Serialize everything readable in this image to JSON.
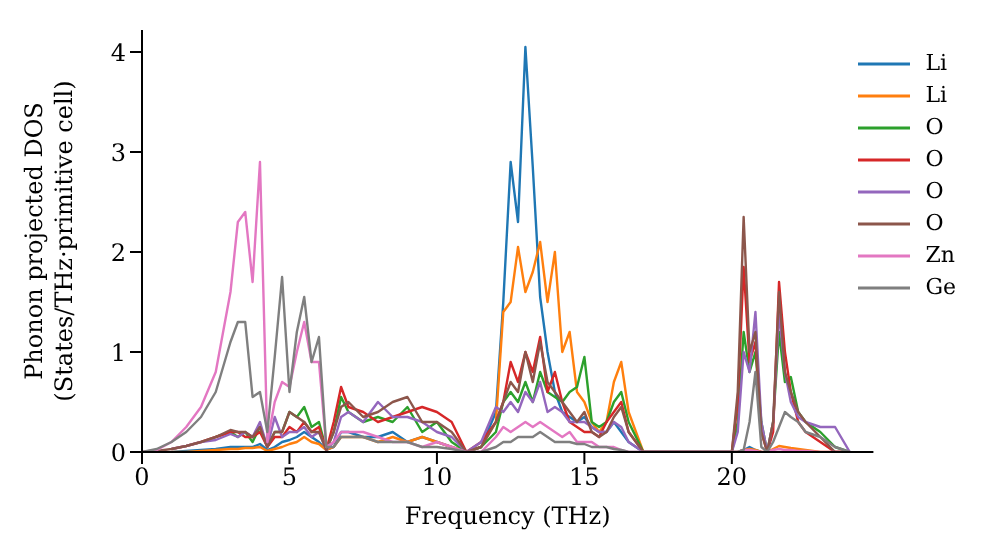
{
  "chart_data": {
    "type": "line",
    "xlabel": "Frequency (THz)",
    "ylabel": "Phonon projected DOS\n(States/THz·primitive cell)",
    "x": [
      0,
      0.5,
      1,
      1.5,
      2,
      2.5,
      3,
      3.25,
      3.5,
      3.75,
      4,
      4.25,
      4.5,
      4.75,
      5,
      5.25,
      5.5,
      5.75,
      6,
      6.25,
      6.5,
      6.75,
      7,
      7.5,
      8,
      8.5,
      9,
      9.5,
      10,
      10.5,
      11,
      11.5,
      12,
      12.25,
      12.5,
      12.75,
      13,
      13.25,
      13.5,
      13.75,
      14,
      14.25,
      14.5,
      14.75,
      15,
      15.25,
      15.5,
      15.75,
      16,
      16.25,
      16.5,
      17,
      17.5,
      18,
      19,
      19.8,
      20,
      20.2,
      20.4,
      20.6,
      20.8,
      21,
      21.2,
      21.4,
      21.6,
      21.8,
      22,
      22.25,
      22.5,
      23,
      23.5,
      24
    ],
    "xlim": [
      0,
      24.8
    ],
    "xticks": [
      0,
      5,
      10,
      15,
      20
    ],
    "ylim": [
      0,
      4.22
    ],
    "yticks": [
      0,
      1,
      2,
      3,
      4
    ],
    "grid": false,
    "legend": "top right",
    "marker": "none",
    "line_style": "solid",
    "series": [
      {
        "name": "Li",
        "color": "#1f77b4",
        "values": [
          null,
          null,
          0,
          0.01,
          0.02,
          0.03,
          0.05,
          0.05,
          0.05,
          0.05,
          0.08,
          0.02,
          0.05,
          0.1,
          0.12,
          0.15,
          0.2,
          0.15,
          0.1,
          0.02,
          0.05,
          0.2,
          0.2,
          0.15,
          0.15,
          0.2,
          0.1,
          0.15,
          0.1,
          0.05,
          0,
          0.05,
          0.4,
          1.5,
          2.9,
          2.3,
          4.05,
          2.85,
          1.55,
          1.0,
          0.6,
          0.4,
          0.35,
          0.3,
          0.35,
          0.25,
          0.2,
          0.2,
          0.3,
          0.2,
          0.1,
          0,
          0,
          0,
          0,
          0,
          0,
          0,
          0.02,
          0.05,
          0.02,
          0,
          null,
          null,
          null,
          null,
          null,
          null,
          null,
          null,
          null,
          null
        ]
      },
      {
        "name": "Li",
        "color": "#ff7f0e",
        "values": [
          null,
          null,
          0,
          0,
          0.01,
          0.02,
          0.03,
          0.03,
          0.04,
          0.04,
          0.05,
          0.01,
          0.03,
          0.05,
          0.08,
          0.1,
          0.15,
          0.1,
          0.08,
          0.02,
          0.05,
          0.15,
          0.15,
          0.15,
          0.1,
          0.15,
          0.1,
          0.15,
          0.1,
          0.05,
          0,
          0.05,
          0.3,
          1.4,
          1.5,
          2.05,
          1.6,
          1.8,
          2.1,
          1.5,
          2.0,
          1.0,
          1.2,
          0.6,
          0.5,
          0.3,
          0.2,
          0.3,
          0.7,
          0.9,
          0.4,
          0,
          0,
          0,
          0,
          0,
          0,
          0,
          0.02,
          0.03,
          0.02,
          0,
          0,
          0.03,
          0.06,
          0.05,
          0.04,
          0.03,
          0.02,
          0,
          0,
          0
        ]
      },
      {
        "name": "O",
        "color": "#2ca02c",
        "values": [
          null,
          null,
          null,
          null,
          null,
          0.15,
          0.2,
          0.15,
          0.2,
          0.1,
          0.25,
          0.05,
          0.2,
          0.2,
          0.4,
          0.35,
          0.45,
          0.25,
          0.3,
          0.02,
          0.2,
          0.55,
          0.4,
          0.3,
          0.35,
          0.3,
          0.45,
          0.2,
          0.3,
          0.1,
          0,
          0.05,
          0.2,
          0.5,
          0.6,
          0.5,
          0.7,
          0.5,
          0.8,
          0.6,
          0.55,
          0.5,
          0.6,
          0.65,
          0.95,
          0.3,
          0.25,
          0.3,
          0.5,
          0.6,
          0.3,
          0,
          0,
          0,
          0,
          0,
          0,
          0.3,
          1.2,
          0.8,
          1.0,
          0.3,
          0,
          0.3,
          1.2,
          0.7,
          0.75,
          0.4,
          0.3,
          0.2,
          0.05,
          0
        ]
      },
      {
        "name": "O",
        "color": "#d62728",
        "values": [
          null,
          null,
          0.03,
          0.06,
          0.1,
          0.15,
          0.2,
          0.2,
          0.15,
          0.15,
          0.2,
          0.05,
          0.15,
          0.15,
          0.25,
          0.2,
          0.3,
          0.2,
          0.25,
          0.02,
          0.3,
          0.65,
          0.45,
          0.4,
          0.3,
          0.35,
          0.4,
          0.45,
          0.4,
          0.3,
          0,
          0.1,
          0.3,
          0.5,
          0.9,
          0.7,
          1.0,
          0.8,
          1.15,
          0.6,
          0.8,
          0.5,
          0.3,
          0.25,
          0.2,
          0.2,
          0.15,
          0.3,
          0.4,
          0.5,
          0.2,
          0,
          0,
          0,
          0,
          0,
          0,
          0.5,
          1.85,
          0.9,
          1.1,
          0.2,
          0,
          0.2,
          1.7,
          1.0,
          0.6,
          0.3,
          0.2,
          0.1,
          0,
          0
        ]
      },
      {
        "name": "O",
        "color": "#9467bd",
        "values": [
          null,
          null,
          0.03,
          0.06,
          0.1,
          0.12,
          0.18,
          0.15,
          0.2,
          0.15,
          0.3,
          0.05,
          0.35,
          0.15,
          0.2,
          0.2,
          0.25,
          0.15,
          0.2,
          0.02,
          0.1,
          0.35,
          0.4,
          0.3,
          0.5,
          0.35,
          0.35,
          0.3,
          0.2,
          0.15,
          0,
          0.1,
          0.45,
          0.4,
          0.5,
          0.4,
          0.6,
          0.5,
          0.7,
          0.4,
          0.45,
          0.4,
          0.3,
          0.3,
          0.3,
          0.25,
          0.2,
          0.2,
          0.3,
          0.25,
          0.1,
          0,
          0,
          0,
          0,
          0,
          0,
          0.2,
          1.0,
          0.8,
          1.4,
          0.3,
          0,
          0.3,
          1.4,
          0.8,
          0.5,
          0.35,
          0.3,
          0.25,
          0.25,
          0
        ]
      },
      {
        "name": "O",
        "color": "#8c564b",
        "values": [
          0,
          0.01,
          0.03,
          0.06,
          0.1,
          0.15,
          0.22,
          0.2,
          0.2,
          0.15,
          0.25,
          0.05,
          0.2,
          0.2,
          0.4,
          0.35,
          0.3,
          0.2,
          0.2,
          0.02,
          0.2,
          0.45,
          0.5,
          0.35,
          0.4,
          0.5,
          0.55,
          0.3,
          0.3,
          0.2,
          0,
          0.05,
          0.3,
          0.5,
          0.7,
          0.6,
          1.0,
          0.7,
          1.1,
          0.7,
          0.6,
          0.5,
          0.4,
          0.3,
          0.4,
          0.2,
          0.15,
          0.2,
          0.35,
          0.45,
          0.2,
          0,
          0,
          0,
          0,
          0,
          0,
          0.6,
          2.35,
          1.0,
          1.2,
          0.2,
          0,
          0.3,
          1.6,
          0.8,
          0.6,
          0.4,
          0.3,
          0.15,
          0,
          0
        ]
      },
      {
        "name": "Zn",
        "color": "#e377c2",
        "values": [
          0,
          0.02,
          0.1,
          0.25,
          0.45,
          0.8,
          1.6,
          2.3,
          2.4,
          1.7,
          2.9,
          0.1,
          0.5,
          0.7,
          0.65,
          1.0,
          1.3,
          0.9,
          0.9,
          0.05,
          0.1,
          0.2,
          0.2,
          0.2,
          0.15,
          0.1,
          0.1,
          0.05,
          0.1,
          0.05,
          0,
          0,
          0.15,
          0.25,
          0.2,
          0.25,
          0.3,
          0.25,
          0.3,
          0.25,
          0.2,
          0.15,
          0.2,
          0.1,
          0.1,
          0.1,
          0.05,
          0.05,
          0.05,
          0.02,
          0,
          0,
          0,
          0,
          0,
          0,
          0,
          0,
          0.02,
          0.02,
          0.01,
          0,
          0,
          0.02,
          0.03,
          0.02,
          0.02,
          0.01,
          0.01,
          0,
          0,
          0
        ]
      },
      {
        "name": "Ge",
        "color": "#7f7f7f",
        "values": [
          0,
          0.03,
          0.1,
          0.2,
          0.35,
          0.6,
          1.1,
          1.3,
          1.3,
          0.55,
          0.6,
          0.2,
          0.95,
          1.75,
          0.6,
          1.2,
          1.55,
          0.9,
          1.15,
          0.05,
          0.05,
          0.15,
          0.15,
          0.15,
          0.1,
          0.1,
          0.1,
          0.05,
          0.05,
          0.03,
          0,
          0,
          0.05,
          0.1,
          0.1,
          0.15,
          0.15,
          0.15,
          0.2,
          0.15,
          0.1,
          0.1,
          0.1,
          0.08,
          0.08,
          0.05,
          0.05,
          0.05,
          0.03,
          0.02,
          0,
          0,
          0,
          0,
          0,
          0,
          0,
          0,
          0.02,
          0.3,
          0.8,
          0.05,
          0,
          0.1,
          0.25,
          0.4,
          0.35,
          0.3,
          0.2,
          0.15,
          0.05,
          0
        ]
      }
    ]
  }
}
